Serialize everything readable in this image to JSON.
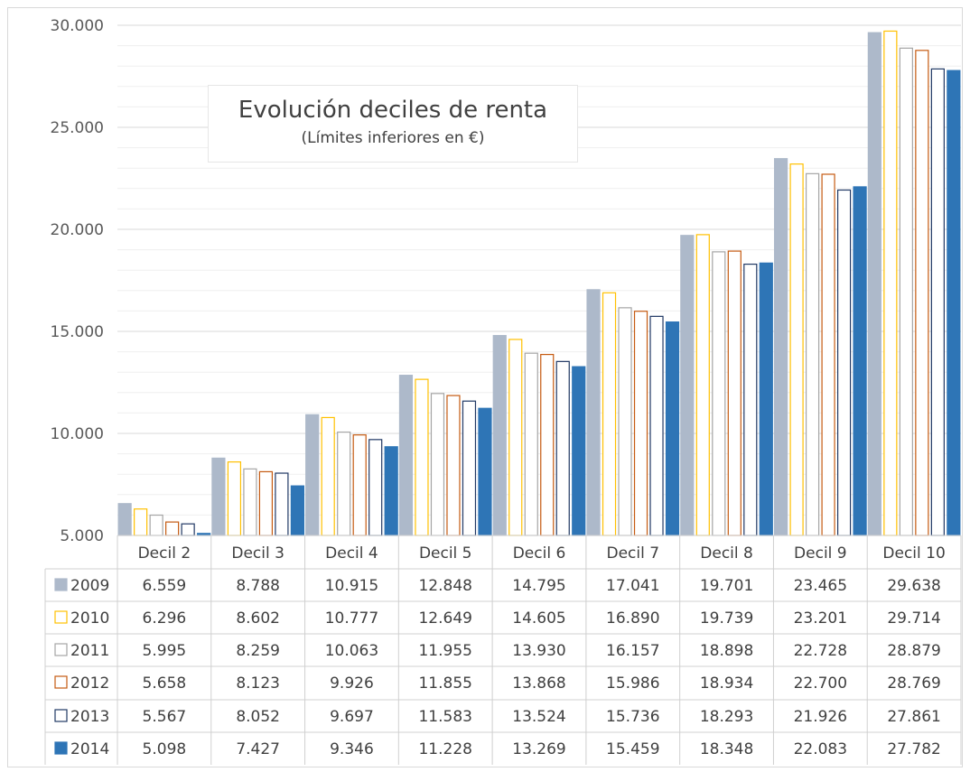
{
  "chart_data": {
    "type": "bar",
    "title": "Evolución deciles de renta",
    "subtitle": "(Límites inferiores en €)",
    "categories": [
      "Decil 2",
      "Decil 3",
      "Decil 4",
      "Decil 5",
      "Decil 6",
      "Decil 7",
      "Decil 8",
      "Decil 9",
      "Decil 10"
    ],
    "y_ticks": [
      "5.000",
      "10.000",
      "15.000",
      "20.000",
      "25.000",
      "30.000"
    ],
    "ylim": [
      5000,
      30000
    ],
    "grid": true,
    "legend": "data-table",
    "series": [
      {
        "name": "2009",
        "color": "#adb9ca",
        "fill": "#adb9ca",
        "stroke": "#adb9ca",
        "values": [
          6559,
          8788,
          10915,
          12848,
          14795,
          17041,
          19701,
          23465,
          29638
        ],
        "labels": [
          "6.559",
          "8.788",
          "10.915",
          "12.848",
          "14.795",
          "17.041",
          "19.701",
          "23.465",
          "29.638"
        ]
      },
      {
        "name": "2010",
        "color": "#ffc000",
        "fill": "#ffffff",
        "stroke": "#ffc000",
        "values": [
          6296,
          8602,
          10777,
          12649,
          14605,
          16890,
          19739,
          23201,
          29714
        ],
        "labels": [
          "6.296",
          "8.602",
          "10.777",
          "12.649",
          "14.605",
          "16.890",
          "19.739",
          "23.201",
          "29.714"
        ]
      },
      {
        "name": "2011",
        "color": "#a5a5a5",
        "fill": "#ffffff",
        "stroke": "#a5a5a5",
        "values": [
          5995,
          8259,
          10063,
          11955,
          13930,
          16157,
          18898,
          22728,
          28879
        ],
        "labels": [
          "5.995",
          "8.259",
          "10.063",
          "11.955",
          "13.930",
          "16.157",
          "18.898",
          "22.728",
          "28.879"
        ]
      },
      {
        "name": "2012",
        "color": "#c55a11",
        "fill": "#ffffff",
        "stroke": "#c55a11",
        "values": [
          5658,
          8123,
          9926,
          11855,
          13868,
          15986,
          18934,
          22700,
          28769
        ],
        "labels": [
          "5.658",
          "8.123",
          "9.926",
          "11.855",
          "13.868",
          "15.986",
          "18.934",
          "22.700",
          "28.769"
        ]
      },
      {
        "name": "2013",
        "color": "#203864",
        "fill": "#ffffff",
        "stroke": "#203864",
        "values": [
          5567,
          8052,
          9697,
          11583,
          13524,
          15736,
          18293,
          21926,
          27861
        ],
        "labels": [
          "5.567",
          "8.052",
          "9.697",
          "11.583",
          "13.524",
          "15.736",
          "18.293",
          "21.926",
          "27.861"
        ]
      },
      {
        "name": "2014",
        "color": "#2e75b6",
        "fill": "#2e75b6",
        "stroke": "#2e75b6",
        "values": [
          5098,
          7427,
          9346,
          11228,
          13269,
          15459,
          18348,
          22083,
          27782
        ],
        "labels": [
          "5.098",
          "7.427",
          "9.346",
          "11.228",
          "13.269",
          "15.459",
          "18.348",
          "22.083",
          "27.782"
        ]
      }
    ]
  }
}
